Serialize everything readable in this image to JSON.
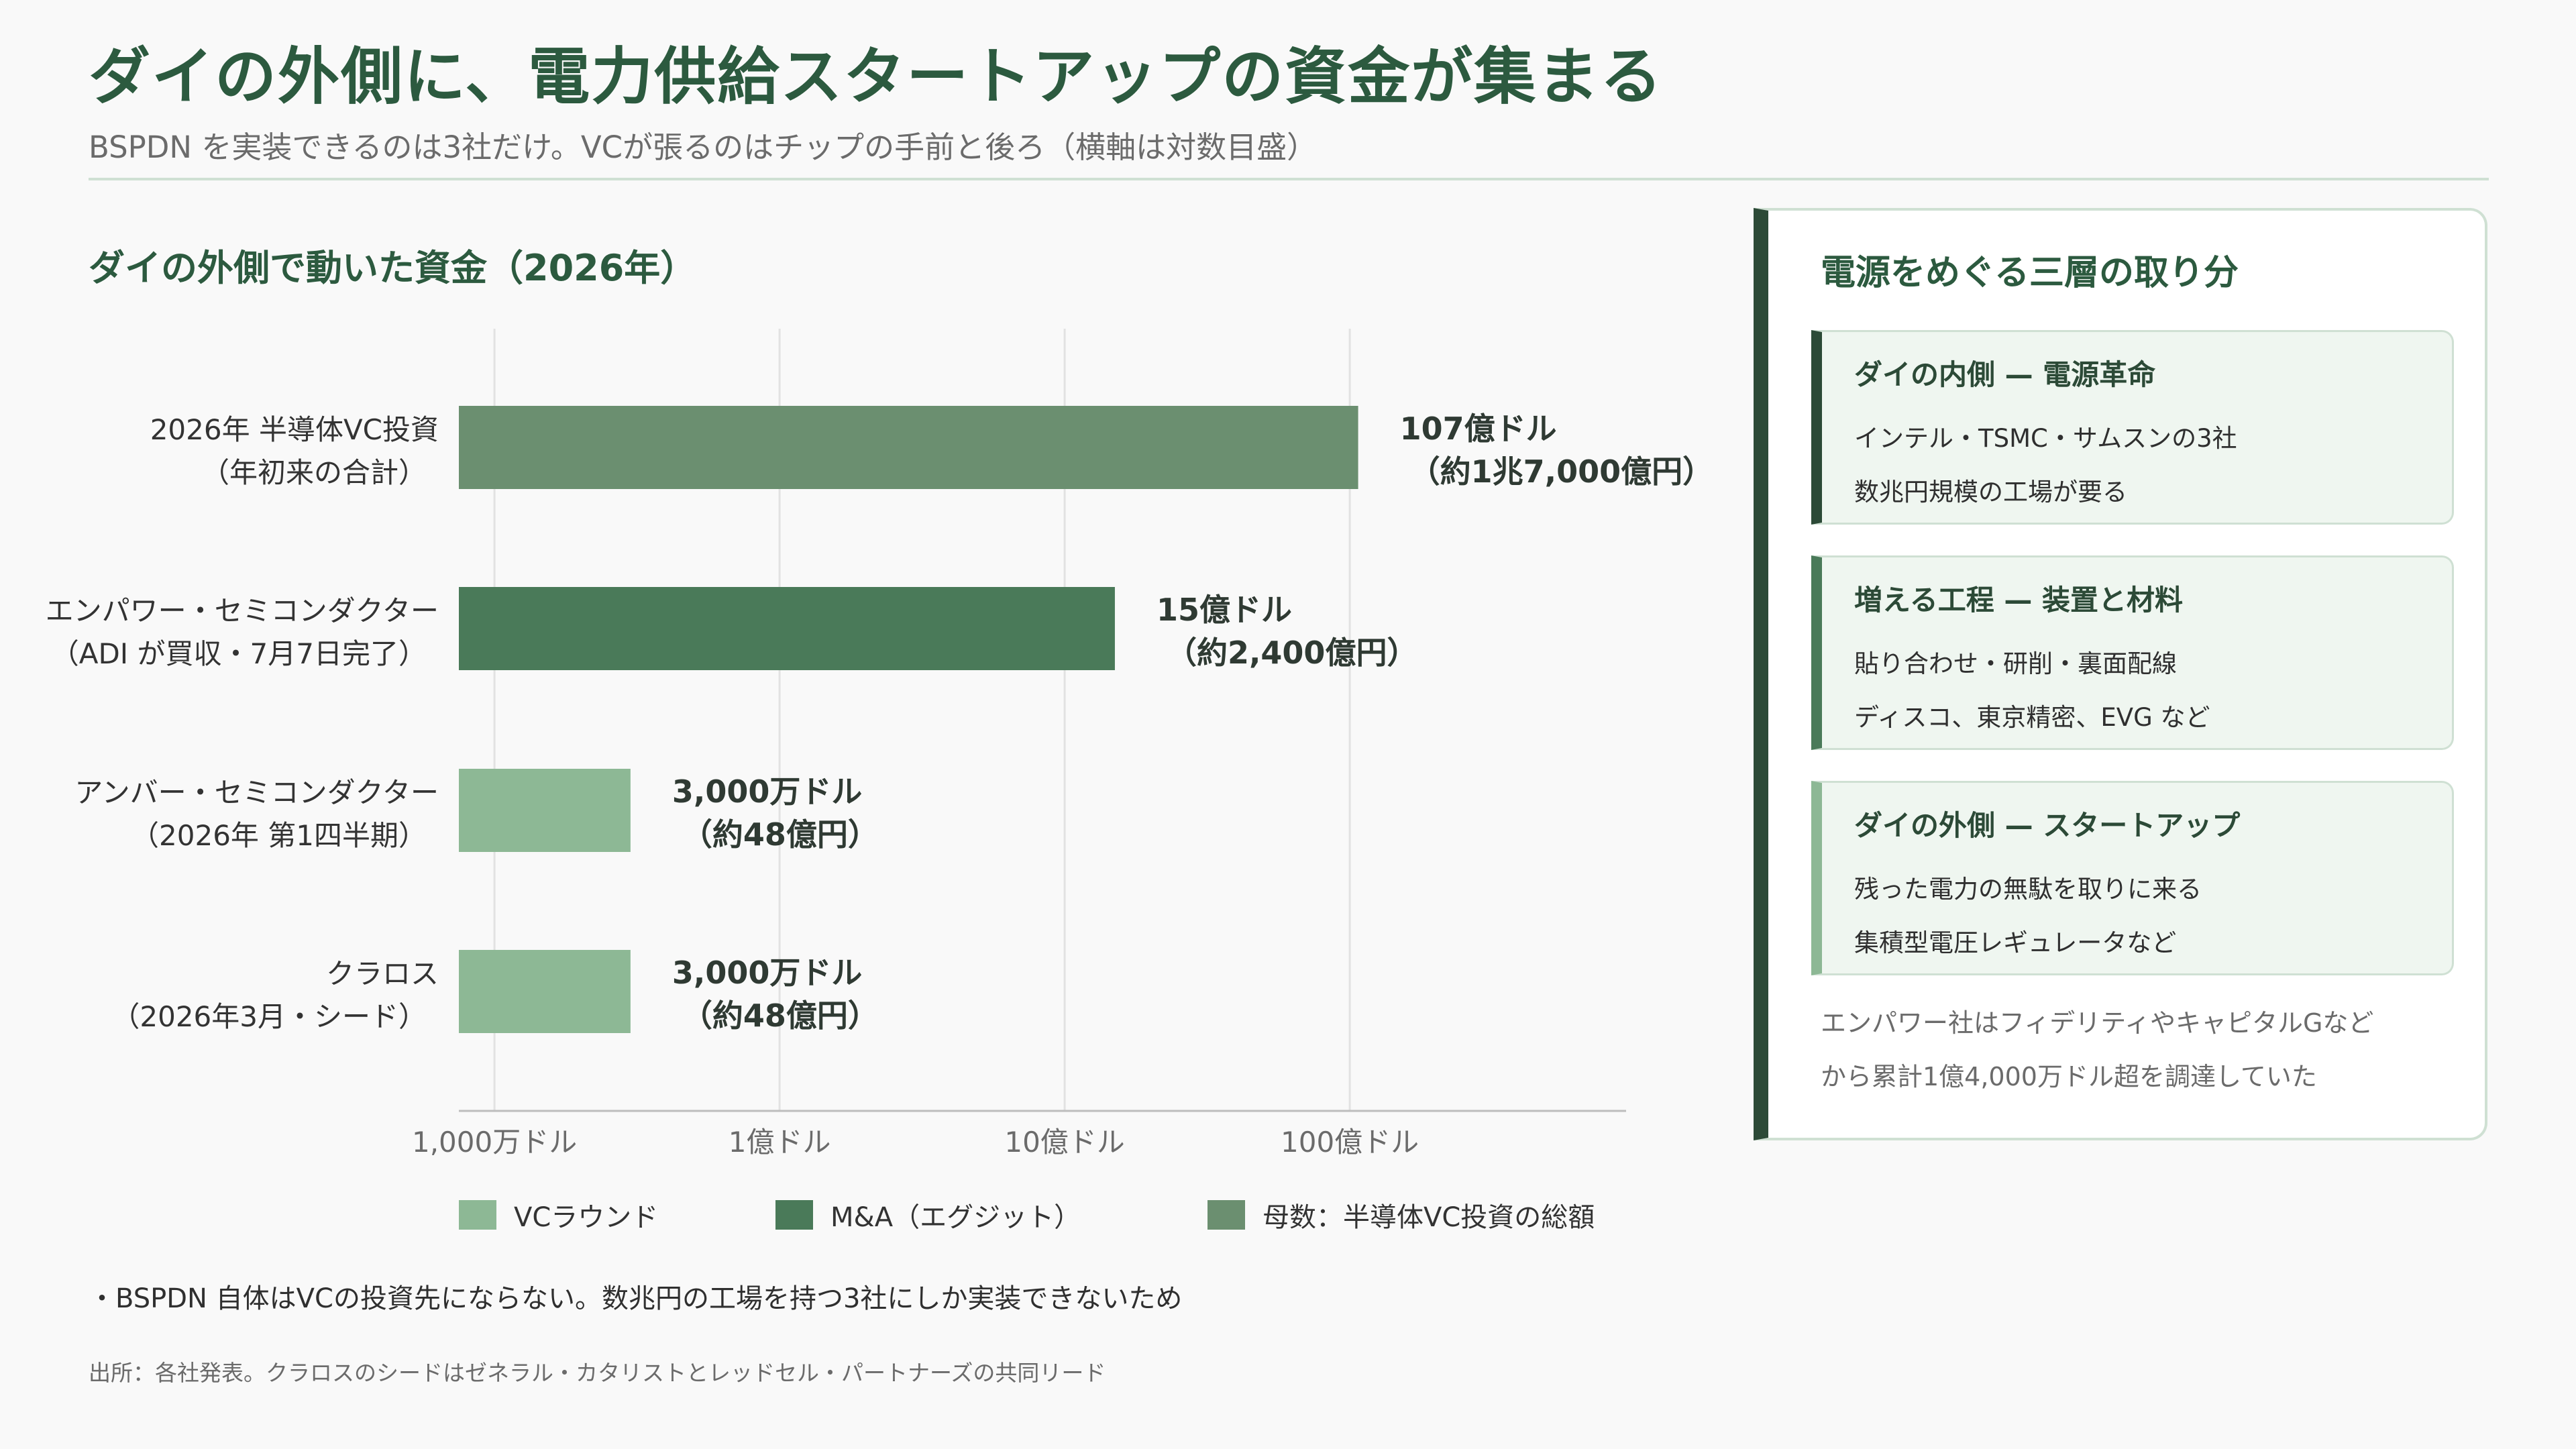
{
  "header": {
    "title": "ダイの外側に、電力供給スタートアップの資金が集まる",
    "subtitle": "BSPDN を実装できるのは3社だけ。VCが張るのはチップの手前と後ろ（横軸は対数目盛）"
  },
  "chart_title": "ダイの外側で動いた資金（2026年）",
  "chart_data": {
    "type": "bar",
    "orientation": "horizontal",
    "x_scale": "log",
    "unit": "ドル",
    "xlim": [
      7500000,
      150000000000
    ],
    "x_ticks": [
      {
        "value": 10000000,
        "label": "1,000万ドル"
      },
      {
        "value": 100000000,
        "label": "1億ドル"
      },
      {
        "value": 1000000000,
        "label": "10億ドル"
      },
      {
        "value": 10000000000,
        "label": "100億ドル"
      }
    ],
    "grid": "vertical",
    "bars": [
      {
        "label_line1": "2026年 半導体VC投資",
        "label_line2": "（年初来の合計）",
        "value": 10700000000,
        "value_label_line1": "107億ドル",
        "value_label_line2": "（約1兆7,000億円）",
        "series": "total"
      },
      {
        "label_line1": "エンパワー・セミコンダクター",
        "label_line2": "（ADI が買収・7月7日完了）",
        "value": 1500000000,
        "value_label_line1": "15億ドル",
        "value_label_line2": "（約2,400億円）",
        "series": "ma"
      },
      {
        "label_line1": "アンバー・セミコンダクター",
        "label_line2": "（2026年 第1四半期）",
        "value": 30000000,
        "value_label_line1": "3,000万ドル",
        "value_label_line2": "（約48億円）",
        "series": "vc"
      },
      {
        "label_line1": "クラロス",
        "label_line2": "（2026年3月・シード）",
        "value": 30000000,
        "value_label_line1": "3,000万ドル",
        "value_label_line2": "（約48億円）",
        "series": "vc"
      }
    ],
    "legend": {
      "placement": "bottom",
      "items": [
        {
          "key": "vc",
          "label": "VCラウンド",
          "color": "#8db895"
        },
        {
          "key": "ma",
          "label": "M&A（エグジット）",
          "color": "#4a7a59"
        },
        {
          "key": "total",
          "label": "母数：半導体VC投資の総額",
          "color": "#6b8f70"
        }
      ]
    }
  },
  "note": "・BSPDN 自体はVCの投資先にならない。数兆円の工場を持つ3社にしか実装できないため",
  "source": "出所：各社発表。クラロスのシードはゼネラル・カタリストとレッドセル・パートナーズの共同リード",
  "panel": {
    "title": "電源をめぐる三層の取り分",
    "layers": [
      {
        "title": "ダイの内側 — 電源革命",
        "line1": "インテル・TSMC・サムスンの3社",
        "line2": "数兆円規模の工場が要る",
        "accent": "#2c4a37"
      },
      {
        "title": "増える工程 — 装置と材料",
        "line1": "貼り合わせ・研削・裏面配線",
        "line2": "ディスコ、東京精密、EVG など",
        "accent": "#4a7a59"
      },
      {
        "title": "ダイの外側 — スタートアップ",
        "line1": "残った電力の無駄を取りに来る",
        "line2": "集積型電圧レギュレータなど",
        "accent": "#8db895"
      }
    ],
    "note_line1": "エンパワー社はフィデリティやキャピタルGなど",
    "note_line2": "から累計1億4,000万ドル超を調達していた"
  },
  "colors": {
    "title": "#2c5a3f",
    "grid": "#e2e2e2",
    "axis": "#bdbdbd"
  }
}
